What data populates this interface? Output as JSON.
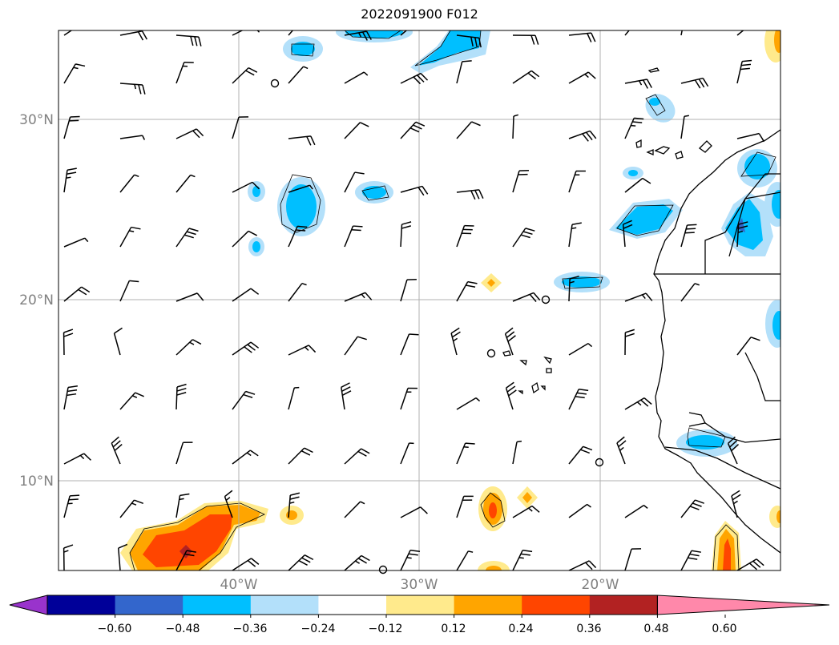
{
  "title": "2022091900 F012",
  "map": {
    "lat_labels": [
      "30°N",
      "20°N",
      "10°N"
    ],
    "lon_labels": [
      "40°W",
      "30°W",
      "20°W"
    ],
    "gridline_color": "#b0b0b0",
    "label_color": "#808080",
    "coastline_color": "#000000",
    "wind_barb_color": "#000000"
  },
  "colorbar": {
    "colors": [
      "#9933cc",
      "#000099",
      "#3366cc",
      "#00bfff",
      "#b3e0fa",
      "#ffffff",
      "#ffea8c",
      "#ffa500",
      "#ff4500",
      "#b22222",
      "#ff88aa"
    ],
    "tick_labels": [
      "−0.60",
      "−0.48",
      "−0.36",
      "−0.24",
      "−0.12",
      "0.12",
      "0.24",
      "0.36",
      "0.48",
      "0.60"
    ],
    "extend": "both"
  }
}
